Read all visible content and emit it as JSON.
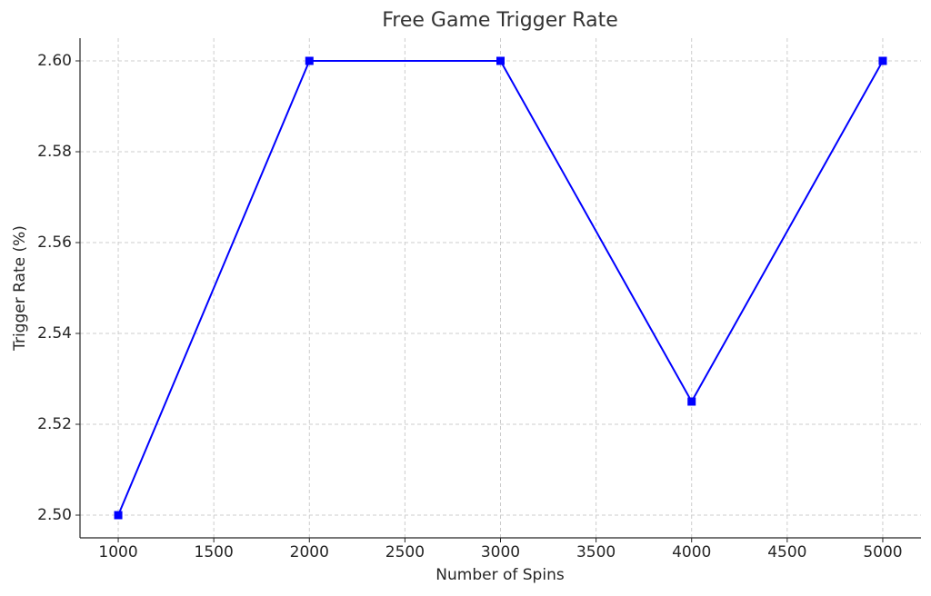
{
  "chart_data": {
    "type": "line",
    "title": "Free Game Trigger Rate",
    "x_label": "Number of Spins",
    "y_label": "Trigger Rate (%)",
    "x": [
      1000,
      2000,
      3000,
      4000,
      5000
    ],
    "series": [
      {
        "name": "Trigger Rate",
        "color": "#0000ff",
        "values": [
          2.5,
          2.6,
          2.6,
          2.525,
          2.6
        ]
      }
    ],
    "xlim": [
      800,
      5200
    ],
    "xticks": [
      1000,
      1500,
      2000,
      2500,
      3000,
      3500,
      4000,
      4500,
      5000
    ],
    "ylim": [
      2.495,
      2.605
    ],
    "yticks": [
      {
        "value": 2.5,
        "label": "2.50"
      },
      2.52,
      2.54,
      2.56,
      2.58,
      {
        "value": 2.6,
        "label": "2.60"
      }
    ],
    "grid": true,
    "marker": "square"
  }
}
